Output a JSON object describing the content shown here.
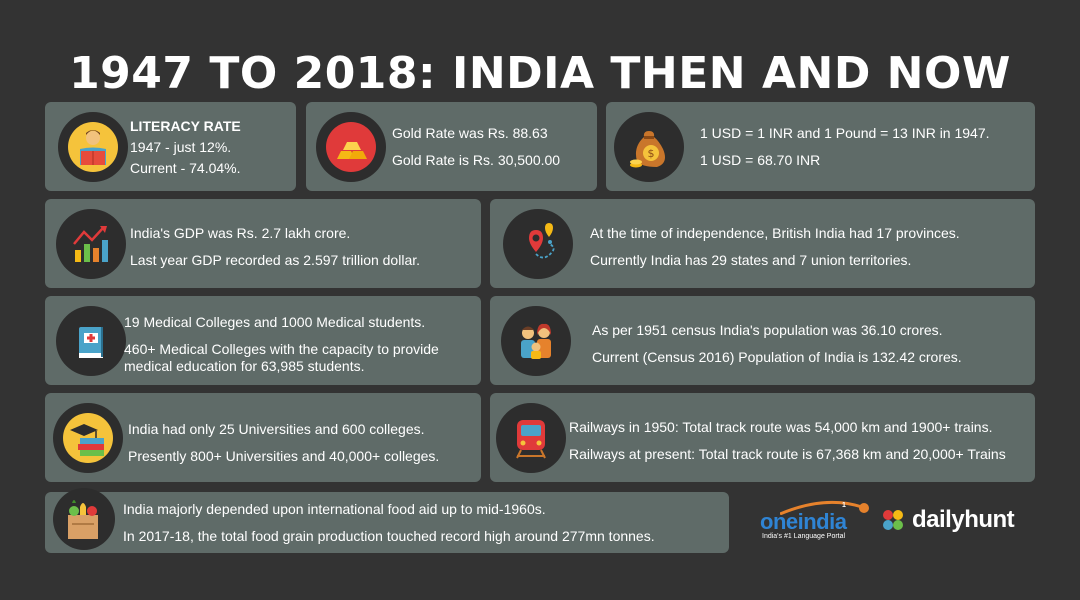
{
  "title": "1947 TO 2018: INDIA THEN AND NOW",
  "cards": {
    "literacy": {
      "heading": "LITERACY RATE",
      "line1": "1947 - just 12%.",
      "line2": "Current - 74.04%."
    },
    "gold": {
      "line1": "Gold Rate was Rs. 88.63",
      "line2": "Gold Rate is Rs. 30,500.00"
    },
    "currency": {
      "line1": "1 USD = 1 INR and 1 Pound = 13 INR in 1947.",
      "line2": "1 USD = 68.70 INR"
    },
    "gdp": {
      "line1": "India's GDP was Rs. 2.7 lakh crore.",
      "line2": "Last year GDP recorded as 2.597 trillion dollar."
    },
    "provinces": {
      "line1": "At the time of independence, British India had 17 provinces.",
      "line2": "Currently India has 29 states and 7 union territories."
    },
    "medical": {
      "line1": "19 Medical Colleges and 1000 Medical students.",
      "line2": "460+ Medical Colleges with the capacity to provide medical education for 63,985 students."
    },
    "population": {
      "line1": "As per 1951 census India's population was 36.10 crores.",
      "line2": "Current (Census 2016) Population of India is 132.42 crores."
    },
    "universities": {
      "line1": "India had only 25 Universities and 600 colleges.",
      "line2": "Presently 800+ Universities and 40,000+ colleges."
    },
    "railways": {
      "line1": "Railways in 1950: Total track route was 54,000 km and 1900+ trains.",
      "line2": "Railways at present: Total track route is 67,368 km and 20,000+ Trains"
    },
    "food": {
      "line1": "India majorly depended upon international food aid up to mid-1960s.",
      "line2": "In 2017-18, the total food grain production touched record high around 277mn tonnes."
    }
  },
  "logos": {
    "oneindia": {
      "name": "oneindia",
      "tagline": "India's #1 Language Portal",
      "badge": "1"
    },
    "dailyhunt": {
      "name": "dailyhunt"
    }
  },
  "colors": {
    "background": "#333333",
    "card": "#5f6b68",
    "icon_circle": "#2d2d2d",
    "oneindia_blue": "#2f84d4"
  }
}
